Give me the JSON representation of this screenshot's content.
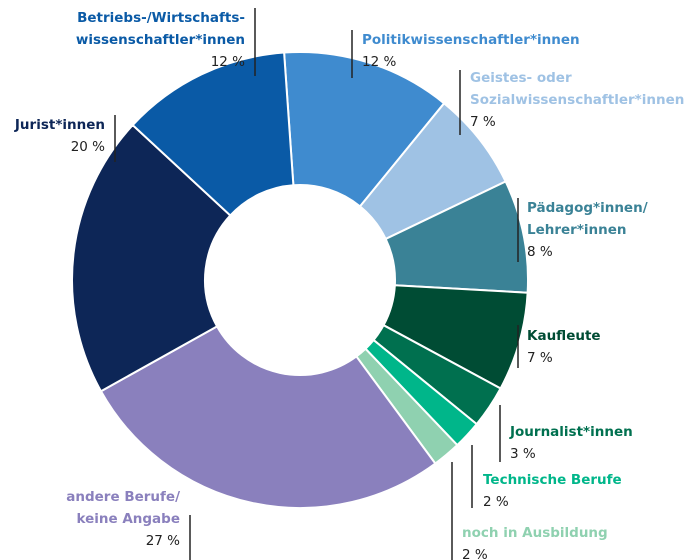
{
  "chart_data": {
    "type": "donut",
    "categories": [
      [
        "Politikwissenschaftler*innen"
      ],
      [
        "Geistes- oder",
        "Sozialwissenschaftler*innen"
      ],
      [
        "Pädagog*innen/",
        "Lehrer*innen"
      ],
      [
        "Kaufleute"
      ],
      [
        "Journalist*innen"
      ],
      [
        "Technische Berufe"
      ],
      [
        "noch in Ausbildung"
      ],
      [
        "andere Berufe/",
        "keine Angabe"
      ],
      [
        "Jurist*innen"
      ],
      [
        "Betriebs-/Wirtschafts-",
        "wissenschaftler*innen"
      ]
    ],
    "values": [
      12,
      7,
      8,
      7,
      3,
      2,
      2,
      27,
      20,
      12
    ],
    "value_labels": [
      "12 %",
      "7 %",
      "8 %",
      "7 %",
      "3 %",
      "2 %",
      "2 %",
      "27 %",
      "20 %",
      "12 %"
    ],
    "colors": [
      "#3f8bcf",
      "#9fc2e4",
      "#3a8296",
      "#004c34",
      "#00704f",
      "#00b68a",
      "#8fd1b0",
      "#8a80bd",
      "#0d2657",
      "#0a5aa6"
    ]
  }
}
